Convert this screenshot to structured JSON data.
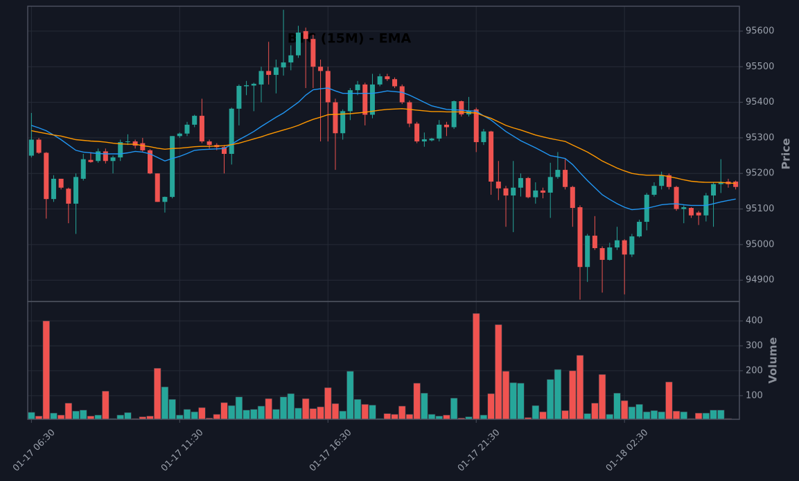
{
  "chart_data": {
    "type": "candlestick",
    "title": "BTC (15M) - EMA",
    "ylabel": "Price",
    "categories": [
      "01-17 06:30",
      null,
      null,
      null,
      null,
      null,
      null,
      null,
      null,
      null,
      null,
      null,
      null,
      null,
      null,
      null,
      null,
      null,
      null,
      null,
      "01-17 11:30",
      null,
      null,
      null,
      null,
      null,
      null,
      null,
      null,
      null,
      null,
      null,
      null,
      null,
      null,
      null,
      null,
      null,
      null,
      null,
      "01-17 16:30",
      null,
      null,
      null,
      null,
      null,
      null,
      null,
      null,
      null,
      null,
      null,
      null,
      null,
      null,
      null,
      null,
      null,
      null,
      null,
      "01-17 21:30",
      null,
      null,
      null,
      null,
      null,
      null,
      null,
      null,
      null,
      null,
      null,
      null,
      null,
      null,
      null,
      null,
      null,
      null,
      null,
      "01-18 02:30",
      null,
      null,
      null,
      null,
      null,
      null,
      null,
      null,
      null,
      null,
      null,
      null,
      null,
      null,
      null
    ],
    "open": [
      95250,
      95295,
      95258,
      95128,
      95185,
      95157,
      95115,
      95185,
      95238,
      95235,
      95262,
      95235,
      95245,
      95288,
      95290,
      95285,
      95265,
      95200,
      95120,
      95134,
      95305,
      95312,
      95337,
      95362,
      95290,
      95280,
      95274,
      95255,
      95382,
      95445,
      95447,
      95450,
      95488,
      95477,
      95498,
      95512,
      95532,
      95600,
      95578,
      95500,
      95488,
      95400,
      95313,
      95375,
      95434,
      95450,
      95365,
      95450,
      95473,
      95465,
      95445,
      95400,
      95340,
      95290,
      95293,
      95298,
      95337,
      95330,
      95403,
      95366,
      95380,
      95288,
      95318,
      95177,
      95158,
      95138,
      95160,
      95187,
      95133,
      95152,
      95146,
      95190,
      95210,
      95162,
      95105,
      94937,
      95025,
      94990,
      94957,
      94992,
      95012,
      94972,
      95023,
      95064,
      95140,
      95165,
      95195,
      95162,
      95100,
      95103,
      95090,
      95082,
      95138,
      95170,
      95177,
      95177
    ],
    "high": [
      95370,
      95300,
      95260,
      95195,
      95185,
      95160,
      95200,
      95255,
      95260,
      95270,
      95270,
      95250,
      95295,
      95310,
      95295,
      95300,
      95268,
      95200,
      95135,
      95305,
      95315,
      95345,
      95365,
      95410,
      95295,
      95285,
      95280,
      95385,
      95450,
      95460,
      95455,
      95500,
      95570,
      95520,
      95660,
      95560,
      95615,
      95610,
      95590,
      95520,
      95500,
      95410,
      95380,
      95440,
      95460,
      95455,
      95480,
      95480,
      95480,
      95470,
      95450,
      95405,
      95345,
      95315,
      95300,
      95350,
      95345,
      95405,
      95405,
      95415,
      95385,
      95325,
      95320,
      95235,
      95165,
      95235,
      95200,
      95190,
      95175,
      95160,
      95230,
      95260,
      95240,
      95165,
      95110,
      95030,
      95080,
      94995,
      95005,
      95050,
      95015,
      95030,
      95070,
      95145,
      95175,
      95205,
      95200,
      95165,
      95110,
      95105,
      95095,
      95145,
      95175,
      95240,
      95185,
      95180
    ],
    "low": [
      95245,
      95255,
      95073,
      95120,
      95155,
      95060,
      95030,
      95180,
      95230,
      95230,
      95228,
      95200,
      95235,
      95280,
      95270,
      95260,
      95198,
      95120,
      95090,
      95130,
      95300,
      95305,
      95330,
      95285,
      95270,
      95265,
      95200,
      95225,
      95335,
      95420,
      95375,
      95400,
      95450,
      95425,
      95475,
      95490,
      95525,
      95440,
      95440,
      95290,
      95290,
      95210,
      95295,
      95350,
      95420,
      95335,
      95355,
      95445,
      95460,
      95440,
      95395,
      95330,
      95285,
      95275,
      95290,
      95290,
      95305,
      95325,
      95360,
      95360,
      95260,
      95280,
      95140,
      95125,
      95050,
      95035,
      95135,
      95130,
      95115,
      95130,
      95075,
      95185,
      95155,
      95050,
      94845,
      94895,
      94985,
      94865,
      94955,
      94985,
      94860,
      94965,
      95020,
      95040,
      95135,
      95155,
      95155,
      95095,
      95060,
      95075,
      95055,
      95065,
      95050,
      95145,
      95160,
      95155
    ],
    "close": [
      95295,
      95258,
      95128,
      95185,
      95160,
      95115,
      95190,
      95240,
      95232,
      95262,
      95235,
      95245,
      95288,
      95290,
      95278,
      95265,
      95200,
      95120,
      95134,
      95305,
      95312,
      95337,
      95362,
      95290,
      95280,
      95274,
      95255,
      95382,
      95446,
      95448,
      95452,
      95488,
      95477,
      95498,
      95512,
      95532,
      95596,
      95578,
      95500,
      95488,
      95400,
      95313,
      95375,
      95434,
      95450,
      95365,
      95450,
      95473,
      95465,
      95445,
      95400,
      95340,
      95290,
      95296,
      95298,
      95337,
      95330,
      95403,
      95366,
      95376,
      95288,
      95318,
      95177,
      95158,
      95138,
      95160,
      95187,
      95133,
      95152,
      95146,
      95190,
      95210,
      95162,
      95103,
      94937,
      95025,
      94990,
      94957,
      94992,
      95012,
      94972,
      95023,
      95064,
      95140,
      95165,
      95195,
      95162,
      95100,
      95105,
      95082,
      95082,
      95138,
      95170,
      95175,
      95170,
      95162
    ],
    "up_color": "#26a69a",
    "down_color": "#ef5350",
    "series": [
      {
        "color": "#2196f3",
        "values": [
          95335,
          95328,
          95320,
          95308,
          95295,
          95280,
          95265,
          95260,
          95258,
          95256,
          95255,
          95255,
          95255,
          95258,
          95262,
          95260,
          95255,
          95245,
          95235,
          95242,
          95248,
          95256,
          95265,
          95267,
          95268,
          95269,
          95270,
          95282,
          95295,
          95306,
          95318,
          95332,
          95345,
          95358,
          95370,
          95385,
          95400,
          95420,
          95435,
          95438,
          95440,
          95432,
          95425,
          95425,
          95425,
          95425,
          95425,
          95428,
          95432,
          95430,
          95428,
          95420,
          95410,
          95400,
          95390,
          95385,
          95380,
          95379,
          95378,
          95376,
          95375,
          95362,
          95350,
          95334,
          95318,
          95305,
          95292,
          95282,
          95272,
          95261,
          95250,
          95246,
          95242,
          95225,
          95202,
          95180,
          95160,
          95140,
          95127,
          95115,
          95105,
          95098,
          95100,
          95102,
          95107,
          95112,
          95114,
          95115,
          95112,
          95110,
          95110,
          95110,
          95115,
          95120,
          95124,
          95128
        ]
      },
      {
        "color": "#ff9800",
        "values": [
          95320,
          95316,
          95312,
          95308,
          95305,
          95300,
          95295,
          95293,
          95291,
          95290,
          95288,
          95285,
          95283,
          95282,
          95282,
          95278,
          95275,
          95271,
          95268,
          95270,
          95271,
          95273,
          95275,
          95276,
          95276,
          95277,
          95278,
          95281,
          95285,
          95291,
          95297,
          95303,
          95310,
          95316,
          95322,
          95328,
          95335,
          95344,
          95352,
          95358,
          95365,
          95366,
          95367,
          95368,
          95370,
          95372,
          95375,
          95378,
          95380,
          95381,
          95382,
          95380,
          95378,
          95376,
          95374,
          95374,
          95373,
          95373,
          95373,
          95371,
          95370,
          95362,
          95355,
          95345,
          95335,
          95328,
          95322,
          95315,
          95308,
          95303,
          95298,
          95294,
          95290,
          95280,
          95270,
          95260,
          95248,
          95235,
          95225,
          95215,
          95207,
          95200,
          95197,
          95195,
          95195,
          95195,
          95191,
          95187,
          95182,
          95178,
          95176,
          95175,
          95175,
          95175,
          95173,
          95172
        ]
      }
    ],
    "ylim": [
      94840,
      95670
    ],
    "yticks": [
      94900,
      95000,
      95100,
      95200,
      95300,
      95400,
      95500,
      95600
    ],
    "grid": true,
    "volume": {
      "ylabel": "Volume",
      "values": [
        33,
        18,
        400,
        30,
        22,
        70,
        38,
        42,
        18,
        22,
        118,
        8,
        22,
        32,
        8,
        15,
        18,
        210,
        135,
        85,
        22,
        45,
        35,
        52,
        10,
        25,
        72,
        60,
        95,
        42,
        45,
        58,
        88,
        45,
        95,
        108,
        50,
        88,
        48,
        55,
        132,
        68,
        38,
        198,
        85,
        65,
        62,
        8,
        28,
        25,
        58,
        25,
        150,
        110,
        25,
        18,
        22,
        90,
        10,
        15,
        430,
        22,
        108,
        385,
        198,
        152,
        150,
        12,
        60,
        35,
        165,
        205,
        40,
        200,
        262,
        28,
        70,
        185,
        25,
        110,
        80,
        55,
        65,
        35,
        40,
        35,
        155,
        38,
        35,
        8,
        30,
        30,
        42,
        42,
        8,
        6
      ],
      "ylim": [
        5,
        478
      ],
      "yticks": [
        100,
        200,
        300,
        400
      ]
    }
  }
}
